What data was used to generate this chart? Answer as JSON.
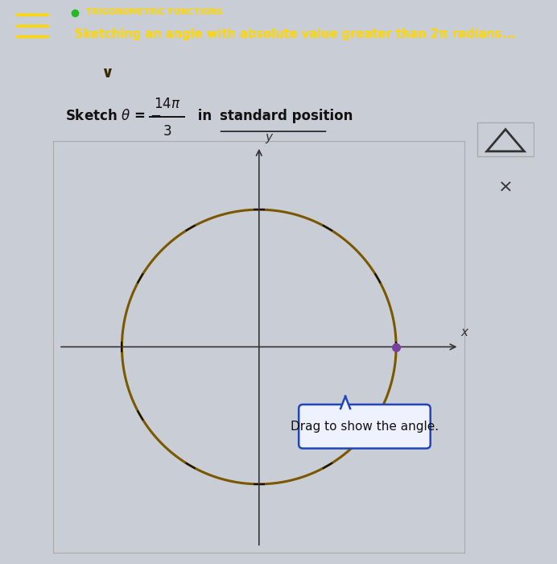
{
  "header_bg_color": "#6B21C8",
  "header_text_color": "#FFD700",
  "header_small_text": "TRIGONOMETRIC FUNCTIONS",
  "header_main_text": "Sketching an angle with absolute value greater than 2π radians...",
  "dot_color": "#22BB22",
  "bg_color": "#c8cdd6",
  "plot_bg_color": "#c8cdd6",
  "circle_color": "#7B5800",
  "axis_color": "#333333",
  "tick_color": "#111111",
  "dot_point_color": "#7B3F9E",
  "tooltip_text": "Drag to show the angle.",
  "tooltip_bg": "#eef2ff",
  "tooltip_border": "#2244bb",
  "num_ticks": 12,
  "hamburger_color": "#FFD700",
  "chevron_bg": "#A89000",
  "chevron_symbol": "v",
  "icon_bg": "#e0e0e0",
  "icon_border": "#aaaaaa"
}
